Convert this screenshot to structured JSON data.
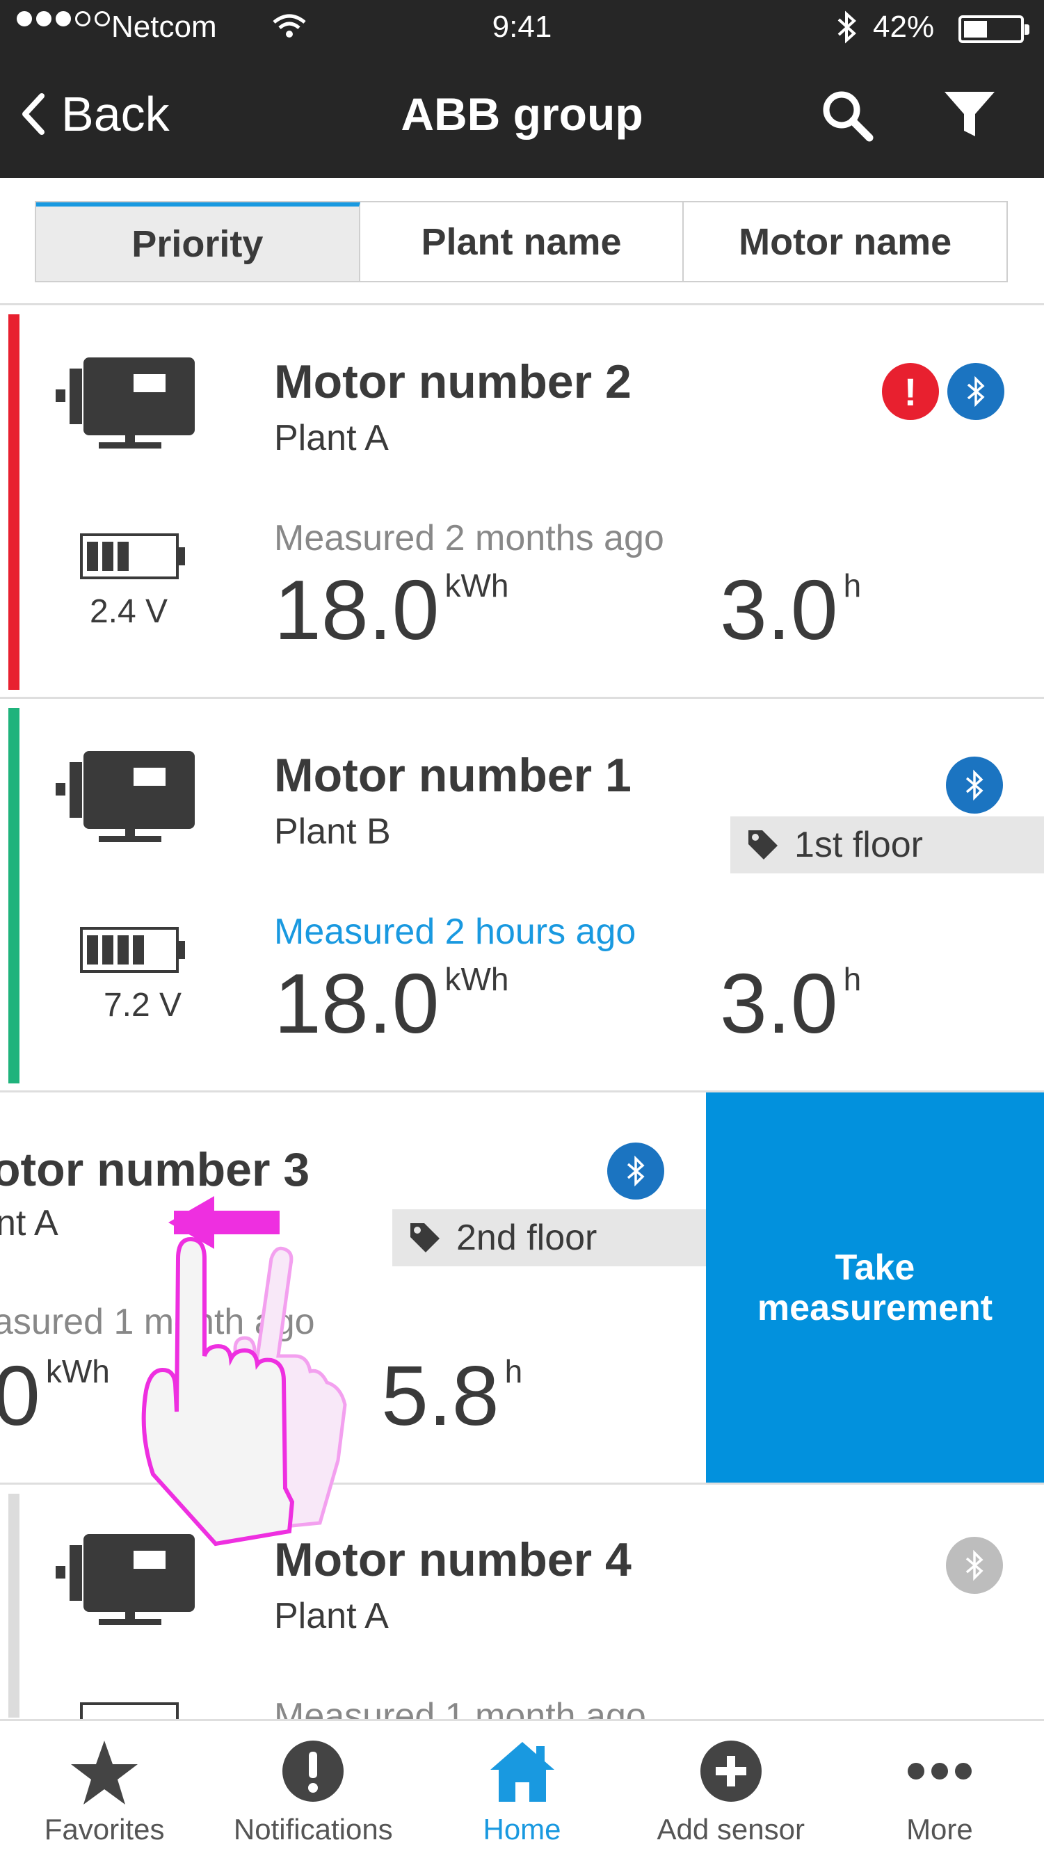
{
  "status_bar": {
    "carrier": "Netcom",
    "time": "9:41",
    "battery_percent": "42%",
    "battery_level": 0.42
  },
  "nav": {
    "back_label": "Back",
    "title": "ABB group"
  },
  "sort_tabs": [
    {
      "label": "Priority",
      "active": true
    },
    {
      "label": "Plant name",
      "active": false
    },
    {
      "label": "Motor name",
      "active": false
    }
  ],
  "motors": [
    {
      "name": "Motor number 2",
      "plant": "Plant A",
      "voltage": "2.4 V",
      "measured": "Measured 2 months ago",
      "energy": "18.0",
      "energy_unit": "kWh",
      "hours": "3.0",
      "hours_unit": "h",
      "status_color": "#e8202f",
      "battery_bars": 3
    },
    {
      "name": "Motor number 1",
      "plant": "Plant B",
      "tag": "1st floor",
      "voltage": "7.2 V",
      "measured": "Measured 2 hours ago",
      "energy": "18.0",
      "energy_unit": "kWh",
      "hours": "3.0",
      "hours_unit": "h",
      "status_color": "#1fb37c",
      "battery_bars": 4
    },
    {
      "name": "otor number 3",
      "plant": "nt A",
      "tag": "2nd floor",
      "measured": "asured 1 month ago",
      "energy": "0",
      "energy_unit": "kWh",
      "hours": "5.8",
      "hours_unit": "h",
      "swipe_action": "Take measurement"
    },
    {
      "name": "Motor number 4",
      "plant": "Plant A",
      "measured": "Measured 1 month ago",
      "status_color": "#dcdcdc"
    }
  ],
  "tab_bar": [
    {
      "label": "Favorites",
      "icon": "star-icon",
      "active": false
    },
    {
      "label": "Notifications",
      "icon": "alert-icon",
      "active": false
    },
    {
      "label": "Home",
      "icon": "home-icon",
      "active": true
    },
    {
      "label": "Add sensor",
      "icon": "plus-icon",
      "active": false
    },
    {
      "label": "More",
      "icon": "more-icon",
      "active": false
    }
  ],
  "colors": {
    "accent": "#1999e0",
    "action_blue": "#0291dd",
    "bluetooth_blue": "#1b74c1",
    "error_red": "#e8202f",
    "ok_green": "#1fb37c",
    "nav_dark": "#262626",
    "gesture_magenta": "#ee2fe0"
  }
}
